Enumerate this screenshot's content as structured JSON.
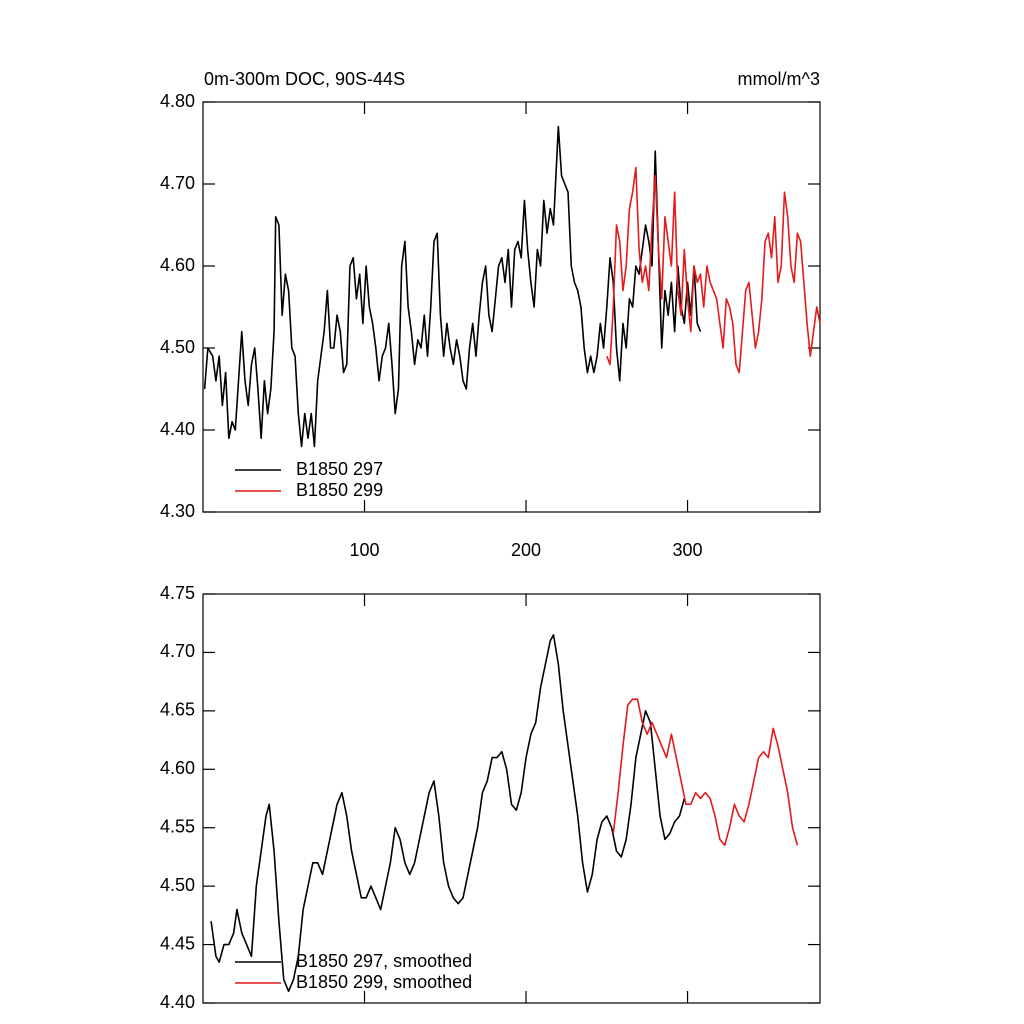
{
  "chart_data": [
    {
      "type": "line",
      "title": "0m-300m DOC, 90S-44S",
      "units": "mmol/m^3",
      "xlim": [
        0,
        382
      ],
      "xticks": [
        100,
        200,
        300
      ],
      "ylim": [
        4.3,
        4.8
      ],
      "yticks": [
        {
          "value": 4.3,
          "label": "4.30"
        },
        {
          "value": 4.4,
          "label": "4.40"
        },
        {
          "value": 4.5,
          "label": "4.50"
        },
        {
          "value": 4.6,
          "label": "4.60"
        },
        {
          "value": 4.7,
          "label": "4.70"
        },
        {
          "value": 4.8,
          "label": "4.80"
        }
      ],
      "series": [
        {
          "name": "B1850 297",
          "color": "#000000",
          "x": [
            1,
            3,
            6,
            8,
            10,
            12,
            14,
            16,
            18,
            20,
            22,
            24,
            26,
            28,
            30,
            32,
            34,
            36,
            38,
            40,
            42,
            44,
            45,
            47,
            49,
            51,
            53,
            55,
            57,
            59,
            61,
            63,
            65,
            67,
            69,
            71,
            73,
            75,
            77,
            79,
            81,
            83,
            85,
            87,
            89,
            91,
            93,
            95,
            97,
            99,
            101,
            103,
            105,
            107,
            109,
            111,
            113,
            115,
            117,
            119,
            121,
            123,
            125,
            127,
            129,
            131,
            133,
            135,
            137,
            139,
            141,
            143,
            145,
            147,
            149,
            151,
            153,
            155,
            157,
            159,
            161,
            163,
            165,
            167,
            169,
            171,
            173,
            175,
            177,
            179,
            181,
            183,
            185,
            187,
            189,
            191,
            193,
            195,
            197,
            199,
            201,
            203,
            205,
            207,
            209,
            211,
            213,
            215,
            217,
            219,
            220,
            222,
            224,
            226,
            228,
            230,
            232,
            234,
            236,
            238,
            240,
            242,
            244,
            246,
            248,
            250,
            252,
            254,
            256,
            258,
            260,
            262,
            264,
            266,
            268,
            270,
            272,
            274,
            276,
            278,
            280,
            282,
            284,
            286,
            288,
            290,
            292,
            294,
            296,
            298,
            300,
            302,
            304,
            306,
            308
          ],
          "values": [
            4.45,
            4.5,
            4.49,
            4.46,
            4.49,
            4.43,
            4.47,
            4.39,
            4.41,
            4.4,
            4.46,
            4.52,
            4.46,
            4.43,
            4.48,
            4.5,
            4.45,
            4.39,
            4.46,
            4.42,
            4.45,
            4.52,
            4.66,
            4.65,
            4.54,
            4.59,
            4.57,
            4.5,
            4.49,
            4.42,
            4.38,
            4.42,
            4.39,
            4.42,
            4.38,
            4.46,
            4.49,
            4.52,
            4.57,
            4.5,
            4.5,
            4.54,
            4.52,
            4.47,
            4.48,
            4.6,
            4.61,
            4.56,
            4.59,
            4.53,
            4.6,
            4.55,
            4.53,
            4.5,
            4.46,
            4.49,
            4.5,
            4.53,
            4.48,
            4.42,
            4.45,
            4.6,
            4.63,
            4.55,
            4.52,
            4.48,
            4.51,
            4.5,
            4.54,
            4.49,
            4.55,
            4.63,
            4.64,
            4.54,
            4.49,
            4.53,
            4.5,
            4.48,
            4.51,
            4.49,
            4.46,
            4.45,
            4.5,
            4.53,
            4.49,
            4.54,
            4.58,
            4.6,
            4.54,
            4.52,
            4.56,
            4.6,
            4.61,
            4.58,
            4.62,
            4.55,
            4.62,
            4.63,
            4.61,
            4.68,
            4.62,
            4.58,
            4.55,
            4.62,
            4.6,
            4.68,
            4.64,
            4.67,
            4.65,
            4.73,
            4.77,
            4.71,
            4.7,
            4.69,
            4.6,
            4.58,
            4.57,
            4.55,
            4.5,
            4.47,
            4.49,
            4.47,
            4.49,
            4.53,
            4.5,
            4.55,
            4.61,
            4.58,
            4.5,
            4.46,
            4.53,
            4.5,
            4.56,
            4.55,
            4.6,
            4.59,
            4.62,
            4.65,
            4.63,
            4.6,
            4.74,
            4.62,
            4.5,
            4.57,
            4.54,
            4.58,
            4.52,
            4.6,
            4.55,
            4.53,
            4.58,
            4.54,
            4.6,
            4.53,
            4.52
          ]
        },
        {
          "name": "B1850 299",
          "color": "#e41a1c",
          "x": [
            250,
            252,
            254,
            256,
            258,
            260,
            262,
            264,
            266,
            268,
            270,
            272,
            274,
            276,
            278,
            280,
            282,
            284,
            286,
            288,
            290,
            292,
            294,
            296,
            298,
            300,
            302,
            304,
            306,
            308,
            310,
            312,
            314,
            316,
            318,
            320,
            322,
            324,
            326,
            328,
            330,
            332,
            334,
            336,
            338,
            340,
            342,
            344,
            346,
            348,
            350,
            352,
            354,
            356,
            358,
            360,
            362,
            364,
            366,
            368,
            370,
            372,
            374,
            376,
            378,
            380,
            382
          ],
          "values": [
            4.49,
            4.48,
            4.55,
            4.65,
            4.63,
            4.57,
            4.6,
            4.67,
            4.69,
            4.72,
            4.62,
            4.58,
            4.6,
            4.57,
            4.65,
            4.71,
            4.62,
            4.56,
            4.66,
            4.63,
            4.6,
            4.69,
            4.57,
            4.54,
            4.62,
            4.56,
            4.52,
            4.6,
            4.58,
            4.59,
            4.55,
            4.6,
            4.58,
            4.57,
            4.56,
            4.53,
            4.5,
            4.56,
            4.55,
            4.53,
            4.48,
            4.47,
            4.52,
            4.57,
            4.58,
            4.54,
            4.5,
            4.52,
            4.56,
            4.63,
            4.64,
            4.61,
            4.66,
            4.58,
            4.6,
            4.69,
            4.66,
            4.6,
            4.58,
            4.64,
            4.63,
            4.58,
            4.53,
            4.49,
            4.52,
            4.55,
            4.53
          ]
        }
      ]
    },
    {
      "type": "line",
      "xlim": [
        0,
        382
      ],
      "xticks": [
        100,
        200,
        300
      ],
      "ylim": [
        4.4,
        4.75
      ],
      "yticks": [
        {
          "value": 4.4,
          "label": "4.40"
        },
        4.45,
        {
          "value": 4.5,
          "label": "4.50"
        },
        4.55,
        {
          "value": 4.6,
          "label": "4.60"
        },
        4.65,
        {
          "value": 4.7,
          "label": "4.70"
        },
        4.75
      ],
      "series": [
        {
          "name": "B1850 297, smoothed",
          "color": "#000000",
          "x": [
            5,
            8,
            10,
            13,
            16,
            19,
            21,
            24,
            27,
            30,
            33,
            36,
            39,
            41,
            44,
            47,
            50,
            53,
            56,
            59,
            62,
            65,
            68,
            71,
            74,
            77,
            80,
            83,
            86,
            89,
            92,
            95,
            98,
            101,
            104,
            107,
            110,
            113,
            116,
            119,
            122,
            125,
            128,
            131,
            134,
            137,
            140,
            143,
            146,
            149,
            152,
            155,
            158,
            161,
            164,
            167,
            170,
            173,
            176,
            179,
            182,
            185,
            188,
            191,
            194,
            197,
            200,
            203,
            206,
            209,
            212,
            215,
            217,
            220,
            223,
            226,
            229,
            232,
            235,
            238,
            241,
            244,
            247,
            250,
            253,
            256,
            259,
            262,
            265,
            268,
            271,
            274,
            277,
            280,
            283,
            286,
            289,
            292,
            295,
            298
          ],
          "values": [
            4.47,
            4.44,
            4.435,
            4.45,
            4.45,
            4.46,
            4.48,
            4.46,
            4.45,
            4.44,
            4.5,
            4.53,
            4.56,
            4.57,
            4.53,
            4.47,
            4.42,
            4.41,
            4.42,
            4.44,
            4.48,
            4.5,
            4.52,
            4.52,
            4.51,
            4.53,
            4.55,
            4.57,
            4.58,
            4.56,
            4.53,
            4.51,
            4.49,
            4.49,
            4.5,
            4.49,
            4.48,
            4.5,
            4.52,
            4.55,
            4.54,
            4.52,
            4.51,
            4.52,
            4.54,
            4.56,
            4.58,
            4.59,
            4.56,
            4.52,
            4.5,
            4.49,
            4.485,
            4.49,
            4.51,
            4.53,
            4.55,
            4.58,
            4.59,
            4.61,
            4.61,
            4.615,
            4.6,
            4.57,
            4.565,
            4.58,
            4.61,
            4.63,
            4.64,
            4.67,
            4.69,
            4.71,
            4.715,
            4.69,
            4.65,
            4.62,
            4.59,
            4.56,
            4.52,
            4.495,
            4.51,
            4.54,
            4.555,
            4.56,
            4.55,
            4.53,
            4.525,
            4.54,
            4.57,
            4.61,
            4.63,
            4.65,
            4.64,
            4.6,
            4.56,
            4.54,
            4.545,
            4.555,
            4.56,
            4.575
          ]
        },
        {
          "name": "B1850 299, smoothed",
          "color": "#e41a1c",
          "x": [
            254,
            257,
            260,
            263,
            266,
            269,
            272,
            275,
            278,
            281,
            284,
            287,
            290,
            293,
            296,
            299,
            302,
            305,
            308,
            311,
            314,
            317,
            320,
            323,
            326,
            329,
            332,
            335,
            338,
            341,
            344,
            347,
            350,
            353,
            356,
            359,
            362,
            365,
            368
          ],
          "values": [
            4.545,
            4.58,
            4.62,
            4.655,
            4.66,
            4.66,
            4.64,
            4.63,
            4.64,
            4.63,
            4.62,
            4.61,
            4.63,
            4.61,
            4.59,
            4.57,
            4.57,
            4.58,
            4.575,
            4.58,
            4.575,
            4.56,
            4.54,
            4.535,
            4.55,
            4.57,
            4.56,
            4.555,
            4.57,
            4.59,
            4.61,
            4.615,
            4.61,
            4.635,
            4.62,
            4.6,
            4.58,
            4.55,
            4.535
          ]
        }
      ]
    }
  ]
}
